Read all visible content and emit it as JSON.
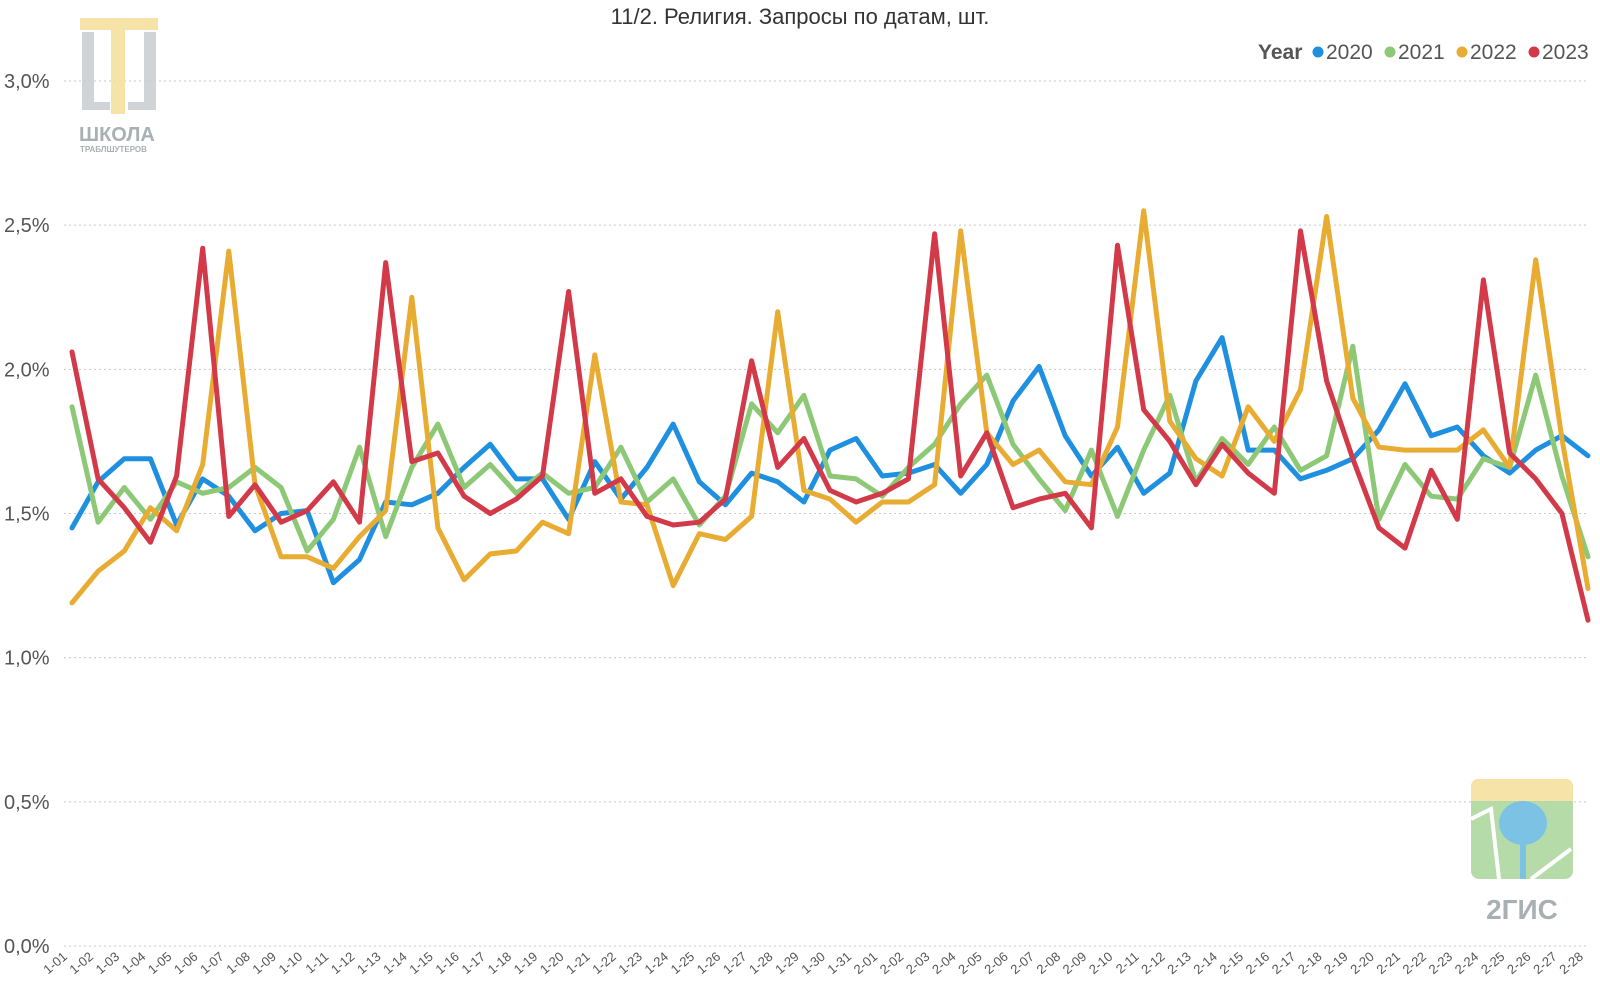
{
  "chart_data": {
    "type": "line",
    "title": "11/2. Религия. Запросы по датам, шт.",
    "ylim": [
      0,
      3
    ],
    "yticks": [
      "0,0%",
      "0,5%",
      "1,0%",
      "1,5%",
      "2,0%",
      "2,5%",
      "3,0%"
    ],
    "ytick_values": [
      0,
      0.5,
      1,
      1.5,
      2,
      2.5,
      3
    ],
    "grid": true,
    "legend": {
      "title": "Year",
      "placement": "top-right"
    },
    "categories": [
      "1-01",
      "1-02",
      "1-03",
      "1-04",
      "1-05",
      "1-06",
      "1-07",
      "1-08",
      "1-09",
      "1-10",
      "1-11",
      "1-12",
      "1-13",
      "1-14",
      "1-15",
      "1-16",
      "1-17",
      "1-18",
      "1-19",
      "1-20",
      "1-21",
      "1-22",
      "1-23",
      "1-24",
      "1-25",
      "1-26",
      "1-27",
      "1-28",
      "1-29",
      "1-30",
      "1-31",
      "2-01",
      "2-02",
      "2-03",
      "2-04",
      "2-05",
      "2-06",
      "2-07",
      "2-08",
      "2-09",
      "2-10",
      "2-11",
      "2-12",
      "2-13",
      "2-14",
      "2-15",
      "2-16",
      "2-17",
      "2-18",
      "2-19",
      "2-20",
      "2-21",
      "2-22",
      "2-23",
      "2-24",
      "2-25",
      "2-26",
      "2-27",
      "2-28"
    ],
    "series": [
      {
        "name": "2020",
        "color": "#1f8fe0",
        "values": [
          1.45,
          1.61,
          1.69,
          1.69,
          1.46,
          1.62,
          1.56,
          1.44,
          1.5,
          1.51,
          1.26,
          1.34,
          1.54,
          1.53,
          1.57,
          1.66,
          1.74,
          1.62,
          1.62,
          1.48,
          1.68,
          1.55,
          1.66,
          1.81,
          1.61,
          1.53,
          1.64,
          1.61,
          1.54,
          1.72,
          1.76,
          1.63,
          1.64,
          1.67,
          1.57,
          1.67,
          1.89,
          2.01,
          1.77,
          1.63,
          1.73,
          1.57,
          1.64,
          1.96,
          2.11,
          1.72,
          1.72,
          1.62,
          1.65,
          1.69,
          1.79,
          1.95,
          1.77,
          1.8,
          1.7,
          1.64,
          1.72,
          1.77,
          1.7
        ]
      },
      {
        "name": "2021",
        "color": "#8cc876",
        "values": [
          1.87,
          1.47,
          1.59,
          1.48,
          1.61,
          1.57,
          1.59,
          1.66,
          1.59,
          1.37,
          1.48,
          1.73,
          1.42,
          1.66,
          1.81,
          1.59,
          1.67,
          1.57,
          1.64,
          1.57,
          1.59,
          1.73,
          1.54,
          1.62,
          1.46,
          1.56,
          1.88,
          1.78,
          1.91,
          1.63,
          1.62,
          1.56,
          1.66,
          1.74,
          1.88,
          1.98,
          1.74,
          1.62,
          1.51,
          1.72,
          1.49,
          1.72,
          1.91,
          1.61,
          1.76,
          1.67,
          1.8,
          1.65,
          1.7,
          2.08,
          1.48,
          1.67,
          1.56,
          1.55,
          1.69,
          1.66,
          1.98,
          1.63,
          1.35
        ]
      },
      {
        "name": "2022",
        "color": "#e8ac32",
        "values": [
          1.19,
          1.3,
          1.37,
          1.52,
          1.44,
          1.67,
          2.41,
          1.6,
          1.35,
          1.35,
          1.31,
          1.42,
          1.51,
          2.25,
          1.45,
          1.27,
          1.36,
          1.37,
          1.47,
          1.43,
          2.05,
          1.54,
          1.53,
          1.25,
          1.43,
          1.41,
          1.49,
          2.2,
          1.58,
          1.55,
          1.47,
          1.54,
          1.54,
          1.6,
          2.48,
          1.78,
          1.67,
          1.72,
          1.61,
          1.6,
          1.8,
          2.55,
          1.82,
          1.69,
          1.63,
          1.87,
          1.75,
          1.93,
          2.53,
          1.9,
          1.73,
          1.72,
          1.72,
          1.72,
          1.79,
          1.66,
          2.38,
          1.76,
          1.24
        ]
      },
      {
        "name": "2023",
        "color": "#d23a4a",
        "values": [
          2.06,
          1.62,
          1.52,
          1.4,
          1.63,
          2.42,
          1.49,
          1.6,
          1.47,
          1.51,
          1.61,
          1.47,
          2.37,
          1.68,
          1.71,
          1.56,
          1.5,
          1.55,
          1.63,
          2.27,
          1.57,
          1.62,
          1.49,
          1.46,
          1.47,
          1.55,
          2.03,
          1.66,
          1.76,
          1.58,
          1.54,
          1.57,
          1.62,
          2.47,
          1.63,
          1.78,
          1.52,
          1.55,
          1.57,
          1.45,
          2.43,
          1.86,
          1.75,
          1.6,
          1.74,
          1.64,
          1.57,
          2.48,
          1.96,
          1.69,
          1.45,
          1.38,
          1.65,
          1.48,
          2.31,
          1.71,
          1.62,
          1.5,
          1.13
        ]
      }
    ]
  },
  "logos": {
    "school_name": "ШКОЛА",
    "school_sub": "ТРАБЛШУТЕРОВ",
    "brand_name": "2ГИС"
  }
}
